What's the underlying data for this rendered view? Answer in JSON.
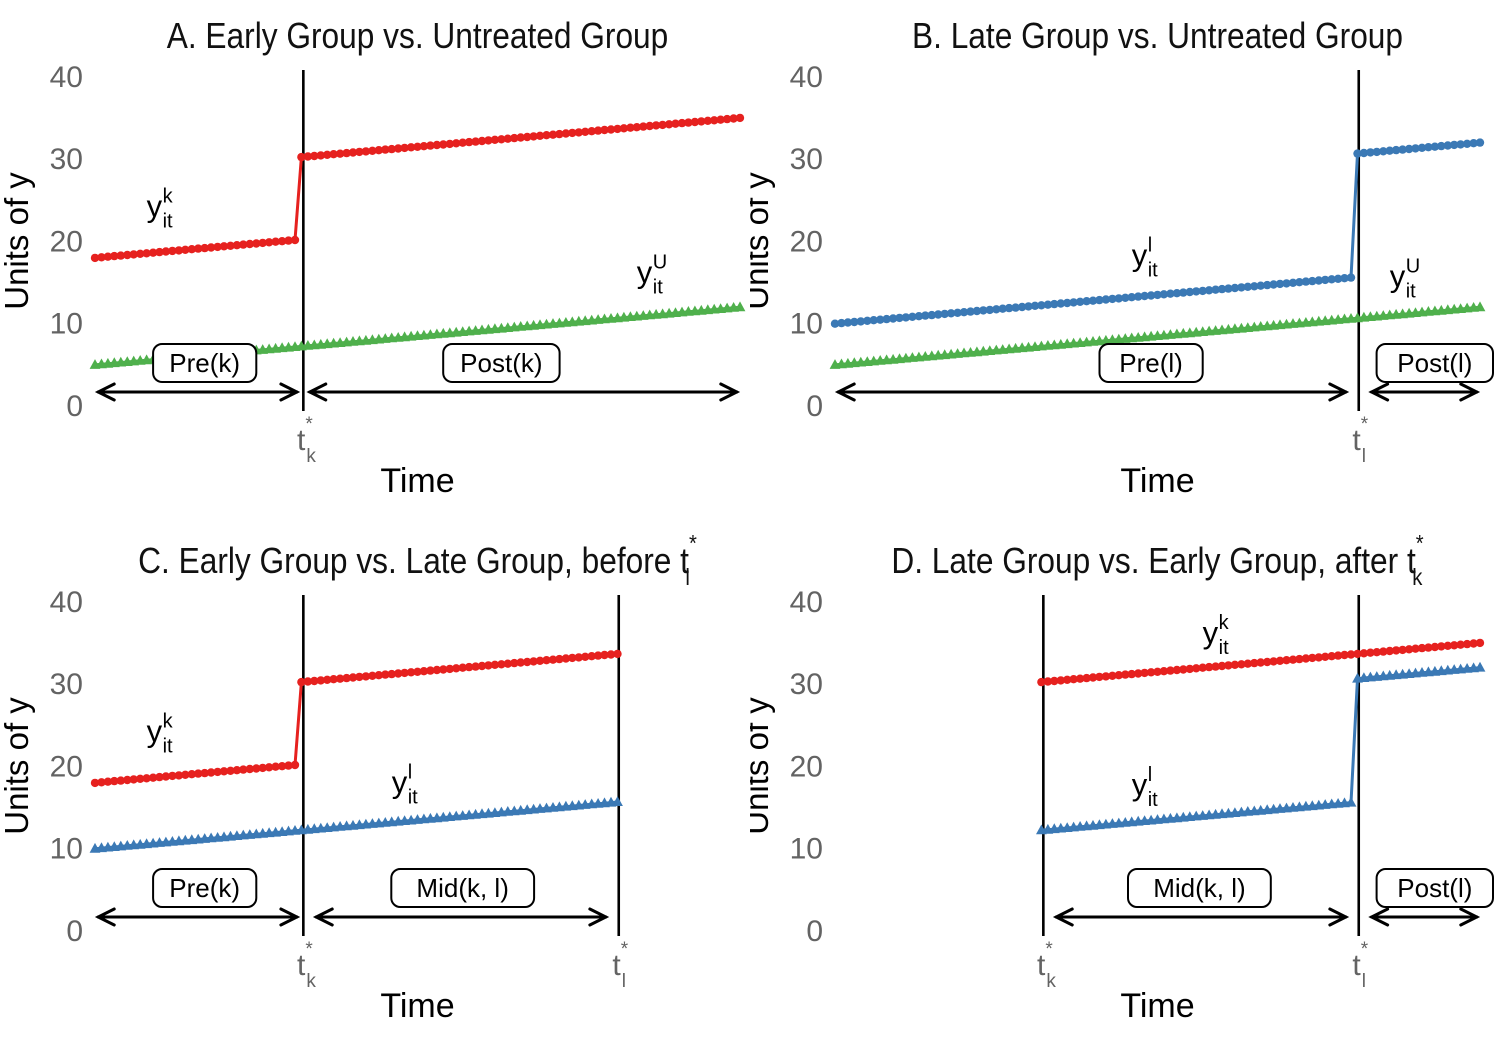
{
  "figure": {
    "background": "#ffffff",
    "colors": {
      "early_group_red": "#e6211f",
      "late_group_blue": "#3b79b5",
      "untreated_green": "#4fb04c",
      "tick_text": "#636363",
      "title_text": "#111111",
      "annotation_black": "#000000"
    }
  },
  "chart_data": {
    "type": "line",
    "x_axis": {
      "label": "Time",
      "range": [
        0,
        100
      ]
    },
    "y_axis": {
      "label": "Units of y",
      "range": [
        0,
        40
      ],
      "ticks": [
        0,
        10,
        20,
        30,
        40
      ]
    },
    "treatment_times": {
      "tk_line": 32.3,
      "tl_line": 81.2
    },
    "panels": [
      {
        "id": "A",
        "title": {
          "prefix": "A. Early Group vs. Untreated Group",
          "base": "",
          "sup": "",
          "sub": ""
        },
        "series": [
          {
            "name": "early-group",
            "color": "early_group_red",
            "marker": "circle",
            "t0": 0,
            "t1": 100,
            "base": 18,
            "slope": 0.07,
            "jump_t": 32,
            "jump": 10
          },
          {
            "name": "untreated-group",
            "color": "untreated_green",
            "marker": "triangle",
            "t0": 0,
            "t1": 100,
            "base": 5,
            "slope": 0.07,
            "jump_t": null,
            "jump": 0
          }
        ],
        "vlines": [
          {
            "t": 32.3,
            "base": "t",
            "sup": "*",
            "sub": "k"
          }
        ],
        "curve_labels": [
          {
            "base": "y",
            "sup": "k",
            "sub": "it",
            "t": 8,
            "v": 23
          },
          {
            "base": "y",
            "sup": "U",
            "sub": "it",
            "t": 84,
            "v": 15
          }
        ],
        "period_labels": [
          {
            "text": "Pre(k)",
            "t": 17
          },
          {
            "text": "Post(k)",
            "t": 63
          }
        ],
        "arrows": [
          {
            "t1": 0.5,
            "t2": 31.3
          },
          {
            "t1": 33.3,
            "t2": 99.5
          }
        ]
      },
      {
        "id": "B",
        "title": {
          "prefix": "B. Late Group vs. Untreated Group",
          "base": "",
          "sup": "",
          "sub": ""
        },
        "series": [
          {
            "name": "late-group",
            "color": "late_group_blue",
            "marker": "circle",
            "t0": 0,
            "t1": 100,
            "base": 10,
            "slope": 0.07,
            "jump_t": 81,
            "jump": 15
          },
          {
            "name": "untreated-group",
            "color": "untreated_green",
            "marker": "triangle",
            "t0": 0,
            "t1": 100,
            "base": 5,
            "slope": 0.07,
            "jump_t": null,
            "jump": 0
          }
        ],
        "vlines": [
          {
            "t": 81.2,
            "base": "t",
            "sup": "*",
            "sub": "l"
          }
        ],
        "curve_labels": [
          {
            "base": "y",
            "sup": "l",
            "sub": "it",
            "t": 46,
            "v": 17.1
          },
          {
            "base": "y",
            "sup": "U",
            "sub": "it",
            "t": 86,
            "v": 14.5
          }
        ],
        "period_labels": [
          {
            "text": "Pre(l)",
            "t": 49
          },
          {
            "text": "Post(l)",
            "t": 93
          }
        ],
        "arrows": [
          {
            "t1": 0.5,
            "t2": 79.2
          },
          {
            "t1": 83.2,
            "t2": 99.5
          }
        ]
      },
      {
        "id": "C",
        "title": {
          "prefix": "C. Early Group vs. Late Group, before ",
          "base": "t",
          "sup": "*",
          "sub": "l"
        },
        "series": [
          {
            "name": "early-group",
            "color": "early_group_red",
            "marker": "circle",
            "t0": 0,
            "t1": 81,
            "base": 18,
            "slope": 0.07,
            "jump_t": 32,
            "jump": 10
          },
          {
            "name": "late-group",
            "color": "late_group_blue",
            "marker": "triangle",
            "t0": 0,
            "t1": 81,
            "base": 10,
            "slope": 0.07,
            "jump_t": null,
            "jump": 0
          }
        ],
        "vlines": [
          {
            "t": 32.3,
            "base": "t",
            "sup": "*",
            "sub": "k"
          },
          {
            "t": 81.2,
            "base": "t",
            "sup": "*",
            "sub": "l"
          }
        ],
        "curve_labels": [
          {
            "base": "y",
            "sup": "k",
            "sub": "it",
            "t": 8,
            "v": 23
          },
          {
            "base": "y",
            "sup": "l",
            "sub": "it",
            "t": 46,
            "v": 16.8
          }
        ],
        "period_labels": [
          {
            "text": "Pre(k)",
            "t": 17
          },
          {
            "text": "Mid(k, l)",
            "t": 57
          }
        ],
        "arrows": [
          {
            "t1": 0.5,
            "t2": 31.3
          },
          {
            "t1": 34.3,
            "t2": 79.2
          }
        ]
      },
      {
        "id": "D",
        "title": {
          "prefix": "D. Late Group vs. Early Group, after ",
          "base": "t",
          "sup": "*",
          "sub": "k"
        },
        "series": [
          {
            "name": "early-group",
            "color": "early_group_red",
            "marker": "circle",
            "t0": 32,
            "t1": 100,
            "base": 18,
            "slope": 0.07,
            "jump_t": 32,
            "jump": 10
          },
          {
            "name": "late-group",
            "color": "late_group_blue",
            "marker": "triangle",
            "t0": 32,
            "t1": 100,
            "base": 10,
            "slope": 0.07,
            "jump_t": 81,
            "jump": 15
          }
        ],
        "vlines": [
          {
            "t": 32.3,
            "base": "t",
            "sup": "*",
            "sub": "k"
          },
          {
            "t": 81.2,
            "base": "t",
            "sup": "*",
            "sub": "l"
          }
        ],
        "curve_labels": [
          {
            "base": "y",
            "sup": "k",
            "sub": "it",
            "t": 57,
            "v": 35
          },
          {
            "base": "y",
            "sup": "l",
            "sub": "it",
            "t": 46,
            "v": 16.5
          }
        ],
        "period_labels": [
          {
            "text": "Mid(k, l)",
            "t": 56.5
          },
          {
            "text": "Post(l)",
            "t": 93
          }
        ],
        "arrows": [
          {
            "t1": 34.3,
            "t2": 79.2
          },
          {
            "t1": 83.2,
            "t2": 99.5
          }
        ]
      }
    ]
  }
}
